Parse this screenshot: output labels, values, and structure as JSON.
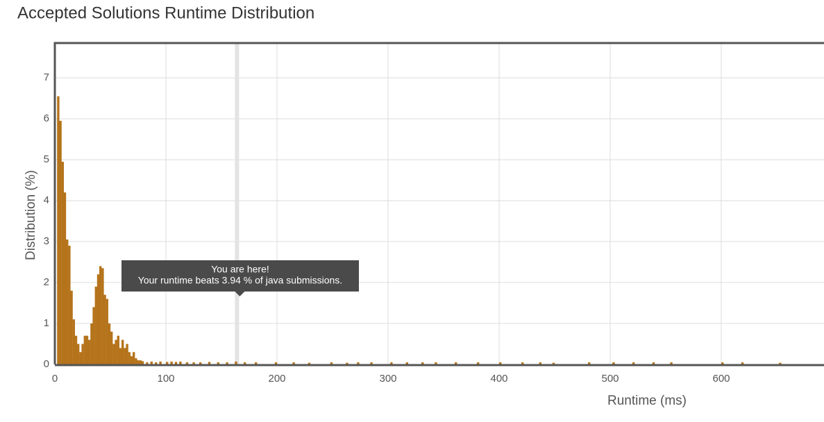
{
  "chart_data": {
    "type": "bar",
    "title": "Accepted Solutions Runtime Distribution",
    "x_label": "Runtime (ms)",
    "y_label": "Distribution (%)",
    "color": "#b5741c",
    "x": [
      3,
      5,
      7,
      9,
      11,
      13,
      15,
      17,
      19,
      21,
      23,
      25,
      27,
      29,
      31,
      33,
      35,
      37,
      39,
      41,
      43,
      45,
      47,
      49,
      51,
      53,
      55,
      57,
      59,
      61,
      63,
      65,
      67,
      69,
      71,
      73,
      75,
      77,
      79,
      83,
      87,
      91,
      95,
      101,
      105,
      109,
      113,
      119,
      125,
      131,
      139,
      147,
      155,
      163,
      171,
      181,
      199,
      215,
      229,
      249,
      263,
      273,
      285,
      303,
      317,
      331,
      343,
      361,
      381,
      401,
      421,
      437,
      449,
      481,
      503,
      521,
      539,
      555,
      601,
      619,
      653
    ],
    "values": [
      6.55,
      5.95,
      4.95,
      4.2,
      3.05,
      2.9,
      1.8,
      1.1,
      0.7,
      0.5,
      0.3,
      0.5,
      0.7,
      0.7,
      0.6,
      1.0,
      1.4,
      1.9,
      2.2,
      2.4,
      2.35,
      1.7,
      1.6,
      1.0,
      0.8,
      0.5,
      0.6,
      0.7,
      0.4,
      0.6,
      0.4,
      0.5,
      0.3,
      0.2,
      0.3,
      0.15,
      0.1,
      0.1,
      0.08,
      0.05,
      0.07,
      0.05,
      0.07,
      0.06,
      0.07,
      0.06,
      0.07,
      0.05,
      0.05,
      0.05,
      0.06,
      0.05,
      0.05,
      0.07,
      0.05,
      0.05,
      0.05,
      0.05,
      0.04,
      0.05,
      0.04,
      0.05,
      0.05,
      0.05,
      0.05,
      0.05,
      0.05,
      0.05,
      0.05,
      0.05,
      0.05,
      0.05,
      0.04,
      0.05,
      0.05,
      0.05,
      0.05,
      0.05,
      0.05,
      0.05,
      0.04
    ],
    "xlim": [
      0,
      700
    ],
    "xticks": [
      0,
      100,
      200,
      300,
      400,
      500,
      600,
      700
    ],
    "ylim": [
      0,
      7.85
    ],
    "yticks": [
      0,
      1,
      2,
      3,
      4,
      5,
      6,
      7
    ],
    "grid": true,
    "highlight_x": 164,
    "tooltip": {
      "line1": "You are here!",
      "line2": "Your runtime beats 3.94 % of java submissions."
    }
  }
}
